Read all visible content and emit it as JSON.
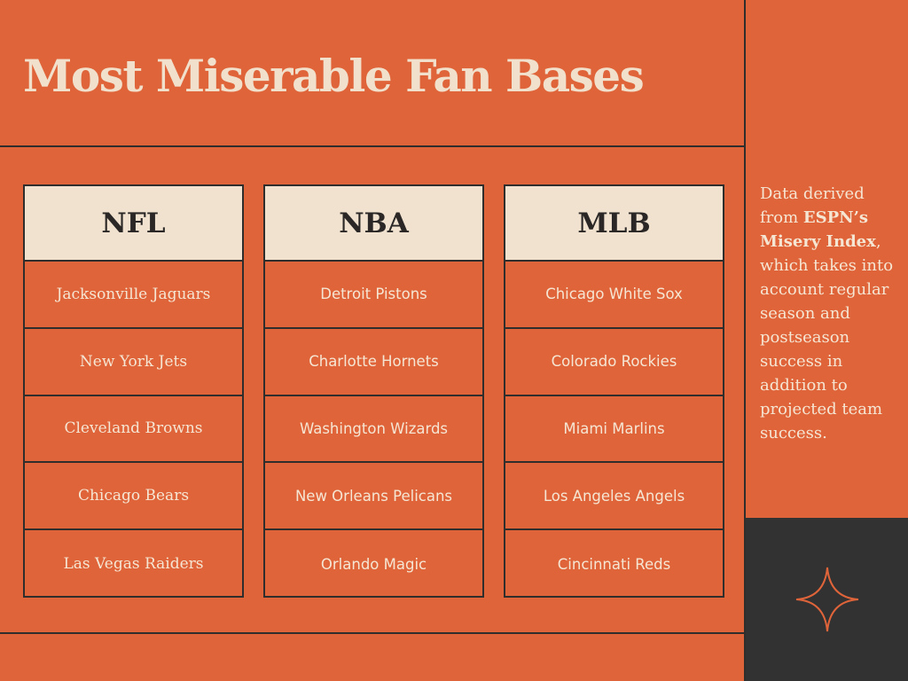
{
  "title": "Most Miserable Fan Bases",
  "leagues": [
    {
      "name": "NFL",
      "teams": [
        "Jacksonville Jaguars",
        "New York Jets",
        "Cleveland Browns",
        "Chicago Bears",
        "Las Vegas Raiders"
      ]
    },
    {
      "name": "NBA",
      "teams": [
        "Detroit Pistons",
        "Charlotte Hornets",
        "Washington Wizards",
        "New Orleans Pelicans",
        "Orlando Magic"
      ]
    },
    {
      "name": "MLB",
      "teams": [
        "Chicago White Sox",
        "Colorado Rockies",
        "Miami Marlins",
        "Los Angeles Angels",
        "Cincinnati Reds"
      ]
    }
  ],
  "note": {
    "prefix": "Data derived from ",
    "source": "ESPN’s Misery Index",
    "suffix": ", which takes into account regular season and postseason success in addition to projected team success."
  },
  "colors": {
    "background": "#e0643a",
    "cream": "#f0e2cf",
    "dark": "#323232"
  },
  "decoration_icon": "four-point-star-icon"
}
